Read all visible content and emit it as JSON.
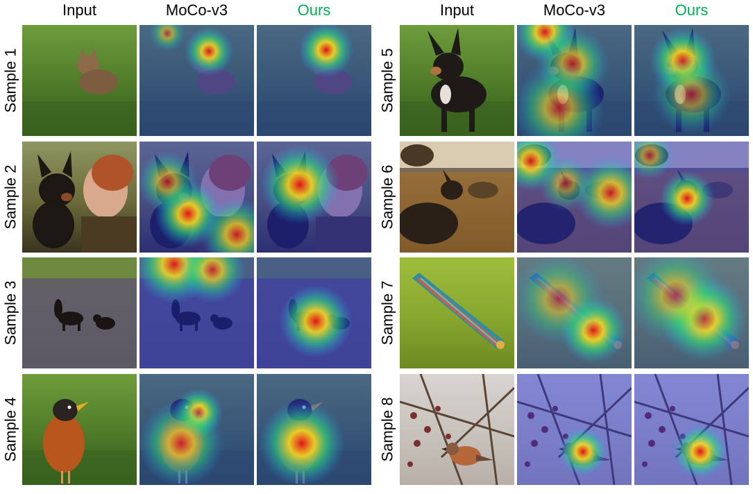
{
  "column_headers": [
    {
      "text": "Input",
      "style": "normal"
    },
    {
      "text": "MoCo-v3",
      "style": "normal"
    },
    {
      "text": "Ours",
      "style": "accent"
    },
    {
      "text": "Input",
      "style": "normal"
    },
    {
      "text": "MoCo-v3",
      "style": "normal"
    },
    {
      "text": "Ours",
      "style": "accent"
    }
  ],
  "accent_color": "#00b050",
  "samples": [
    {
      "label": "Sample 1",
      "subject": "coyote",
      "scene": "grass",
      "moco_focus": "head",
      "ours_focus": "head"
    },
    {
      "label": "Sample 2",
      "subject": "dog",
      "scene": "woman-portrait",
      "moco_focus": "scattered",
      "ours_focus": "dog-head"
    },
    {
      "label": "Sample 3",
      "subject": "dogs",
      "scene": "lake",
      "moco_focus": "background",
      "ours_focus": "dog"
    },
    {
      "label": "Sample 4",
      "subject": "robin",
      "scene": "grass",
      "moco_focus": "head-and-breast",
      "ours_focus": "breast"
    },
    {
      "label": "Sample 5",
      "subject": "chihuahua",
      "scene": "grass",
      "moco_focus": "scattered",
      "ours_focus": "head"
    },
    {
      "label": "Sample 6",
      "subject": "wild-dogs",
      "scene": "savanna",
      "moco_focus": "scattered",
      "ours_focus": "dog"
    },
    {
      "label": "Sample 7",
      "subject": "leafhopper",
      "scene": "leaf",
      "moco_focus": "body",
      "ours_focus": "body"
    },
    {
      "label": "Sample 8",
      "subject": "bird",
      "scene": "branches",
      "moco_focus": "bird",
      "ours_focus": "bird"
    }
  ]
}
